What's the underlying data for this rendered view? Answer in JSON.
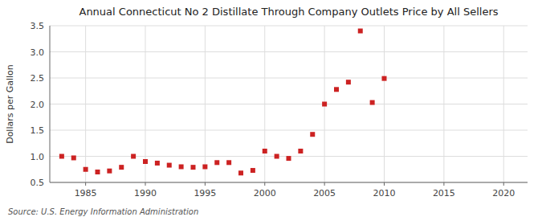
{
  "chart_data": {
    "type": "scatter",
    "title": "Annual Connecticut No 2 Distillate Through Company Outlets Price by All Sellers",
    "y_label": "Dollars per Gallon",
    "source": "Source: U.S. Energy Information Administration",
    "color": "#cc2222",
    "marker": "square",
    "grid": true,
    "xlim": [
      1982,
      2022
    ],
    "xticks": [
      1985,
      1990,
      1995,
      2000,
      2005,
      2010,
      2015,
      2020
    ],
    "ylim": [
      0.5,
      3.5
    ],
    "yticks": [
      0.5,
      {
        "value": 1.0,
        "label": "1.0"
      },
      1.5,
      {
        "value": 2.0,
        "label": "2.0"
      },
      2.5,
      {
        "value": 3.0,
        "label": "3.0"
      },
      3.5
    ],
    "x": [
      1983,
      1984,
      1985,
      1986,
      1987,
      1988,
      1989,
      1990,
      1991,
      1992,
      1993,
      1994,
      1995,
      1996,
      1997,
      1998,
      1999,
      2000,
      2001,
      2002,
      2003,
      2004,
      2005,
      2006,
      2007,
      2008,
      2009,
      2010
    ],
    "values": [
      1.0,
      0.97,
      0.75,
      0.7,
      0.72,
      0.79,
      1.0,
      0.9,
      0.87,
      0.83,
      0.8,
      0.79,
      0.8,
      0.88,
      0.88,
      0.68,
      0.73,
      1.1,
      1.0,
      0.96,
      1.1,
      1.42,
      2.0,
      2.28,
      2.42,
      3.4,
      2.03,
      2.49
    ]
  }
}
